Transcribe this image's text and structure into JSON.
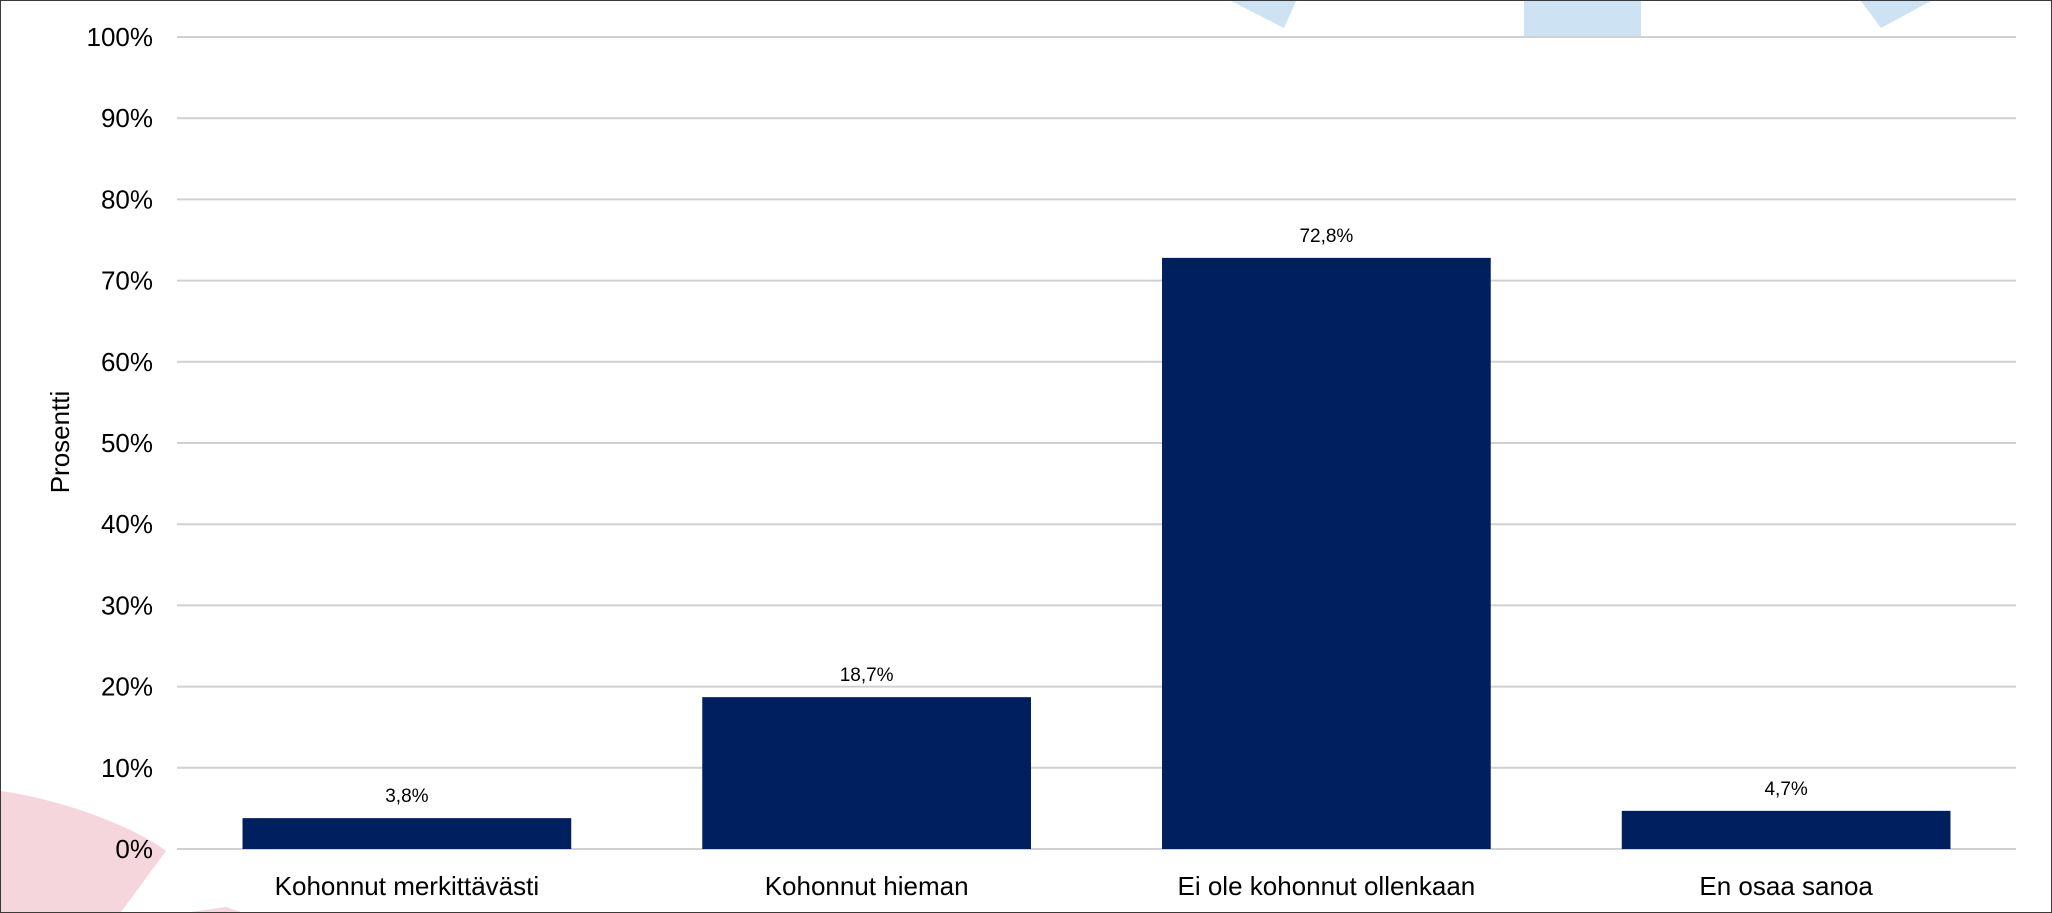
{
  "colors": {
    "bar": "#001f5f",
    "gridline": "#d0d0d0",
    "background": "#ffffff",
    "watermark_blue": "#cde2f2",
    "watermark_pink": "#f4d6dc"
  },
  "chart_data": {
    "type": "bar",
    "title": "",
    "xlabel": "",
    "ylabel": "Prosentti",
    "categories": [
      "Kohonnut merkittävästi",
      "Kohonnut hieman",
      "Ei ole kohonnut ollenkaan",
      "En osaa sanoa"
    ],
    "values": [
      3.8,
      18.7,
      72.8,
      4.7
    ],
    "data_labels": [
      "3,8%",
      "18,7%",
      "72,8%",
      "4,7%"
    ],
    "ylim": [
      0,
      100
    ],
    "yticks": [
      0,
      10,
      20,
      30,
      40,
      50,
      60,
      70,
      80,
      90,
      100
    ],
    "ytick_labels": [
      "0%",
      "10%",
      "20%",
      "30%",
      "40%",
      "50%",
      "60%",
      "70%",
      "80%",
      "90%",
      "100%"
    ],
    "grid": true,
    "legend": "none"
  }
}
